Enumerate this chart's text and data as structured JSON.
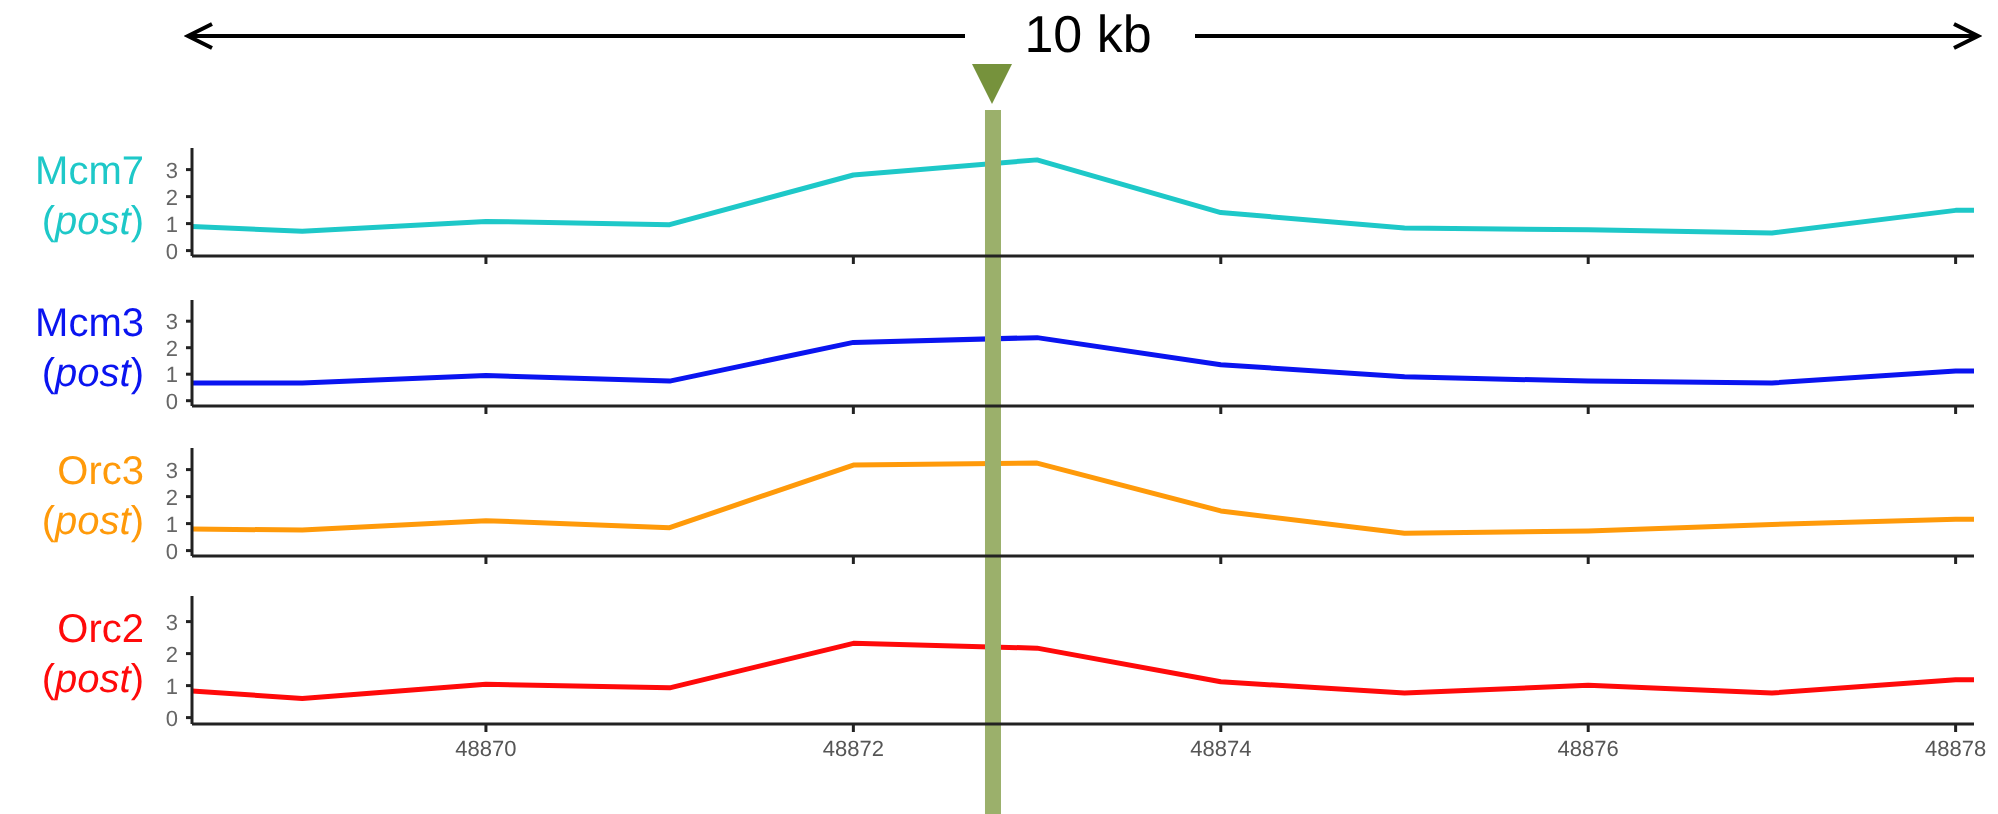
{
  "chart_data": [
    {
      "type": "line",
      "ylabel": "Mcm7 (post)",
      "x": [
        48868.4,
        48869,
        48870,
        48871,
        48872,
        48873,
        48874,
        48875,
        48876,
        48877,
        48878,
        48878.1
      ],
      "xlim": [
        48868.4,
        48878.1
      ],
      "xticks": [
        {
          "value": 48870,
          "label": null
        },
        {
          "value": 48872,
          "label": null
        },
        {
          "value": 48874,
          "label": null
        },
        {
          "value": 48876,
          "label": null
        },
        {
          "value": 48878,
          "label": null
        }
      ],
      "ylim": [
        -0.2,
        3.8
      ],
      "yticks": [
        0,
        1,
        2,
        3
      ],
      "tick_labels": "y",
      "grid": false,
      "marker": "none",
      "series": [
        {
          "color": "#1ec8c8",
          "values": [
            0.89,
            0.72,
            1.08,
            0.96,
            2.8,
            3.36,
            1.41,
            0.84,
            0.77,
            0.65,
            1.49,
            1.49
          ]
        }
      ],
      "ref_lines": [
        {
          "axis": "x",
          "value": 48872.76,
          "color": "#9bb06b"
        }
      ],
      "annotations": [
        "10 kb"
      ]
    },
    {
      "type": "line",
      "ylabel": "Mcm3 (post)",
      "x": [
        48868.4,
        48869,
        48870,
        48871,
        48872,
        48873,
        48874,
        48875,
        48876,
        48877,
        48878,
        48878.1
      ],
      "xlim": [
        48868.4,
        48878.1
      ],
      "xticks": [
        {
          "value": 48870,
          "label": null
        },
        {
          "value": 48872,
          "label": null
        },
        {
          "value": 48874,
          "label": null
        },
        {
          "value": 48876,
          "label": null
        },
        {
          "value": 48878,
          "label": null
        }
      ],
      "ylim": [
        -0.2,
        3.8
      ],
      "yticks": [
        0,
        1,
        2,
        3
      ],
      "tick_labels": "y",
      "grid": false,
      "marker": "none",
      "series": [
        {
          "color": "#0a14f0",
          "values": [
            0.67,
            0.67,
            0.95,
            0.74,
            2.2,
            2.38,
            1.36,
            0.9,
            0.74,
            0.67,
            1.12,
            1.12
          ]
        }
      ],
      "ref_lines": [
        {
          "axis": "x",
          "value": 48872.76,
          "color": "#9bb06b"
        }
      ]
    },
    {
      "type": "line",
      "ylabel": "Orc3 (post)",
      "x": [
        48868.4,
        48869,
        48870,
        48871,
        48872,
        48873,
        48874,
        48875,
        48876,
        48877,
        48878,
        48878.1
      ],
      "xlim": [
        48868.4,
        48878.1
      ],
      "xticks": [
        {
          "value": 48870,
          "label": null
        },
        {
          "value": 48872,
          "label": null
        },
        {
          "value": 48874,
          "label": null
        },
        {
          "value": 48876,
          "label": null
        },
        {
          "value": 48878,
          "label": null
        }
      ],
      "ylim": [
        -0.2,
        3.8
      ],
      "yticks": [
        0,
        1,
        2,
        3
      ],
      "tick_labels": "y",
      "grid": false,
      "marker": "none",
      "series": [
        {
          "color": "#ff9a0a",
          "values": [
            0.8,
            0.76,
            1.11,
            0.85,
            3.17,
            3.24,
            1.47,
            0.64,
            0.73,
            0.97,
            1.16,
            1.16
          ]
        }
      ],
      "ref_lines": [
        {
          "axis": "x",
          "value": 48872.76,
          "color": "#9bb06b"
        }
      ]
    },
    {
      "type": "line",
      "ylabel": "Orc2 (post)",
      "x": [
        48868.4,
        48869,
        48870,
        48871,
        48872,
        48873,
        48874,
        48875,
        48876,
        48877,
        48878,
        48878.1
      ],
      "xlim": [
        48868.4,
        48878.1
      ],
      "xticks": [
        48870,
        48872,
        48874,
        48876,
        48878
      ],
      "ylim": [
        -0.2,
        3.8
      ],
      "yticks": [
        0,
        1,
        2,
        3
      ],
      "grid": false,
      "marker": "none",
      "series": [
        {
          "color": "#ff0a0a",
          "values": [
            0.83,
            0.6,
            1.04,
            0.93,
            2.32,
            2.17,
            1.12,
            0.77,
            1.01,
            0.77,
            1.18,
            1.18
          ]
        }
      ],
      "ref_lines": [
        {
          "axis": "x",
          "value": 48872.76,
          "color": "#9bb06b"
        }
      ]
    }
  ]
}
